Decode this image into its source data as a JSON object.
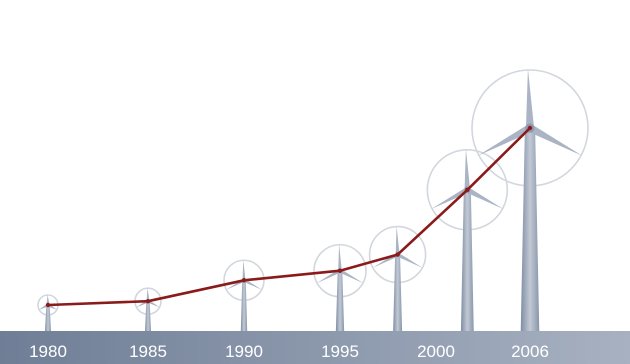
{
  "chart_data": {
    "type": "line",
    "title": "",
    "xlabel": "",
    "ylabel": "",
    "x": [
      1980,
      1985,
      1990,
      1995,
      1998,
      2002,
      2006
    ],
    "values": [
      4,
      8,
      30,
      40,
      57,
      125,
      190
    ],
    "tick_labels": [
      "1980",
      "1985",
      "1990",
      "1995",
      "2000",
      "2006"
    ],
    "ylim": [
      0,
      200
    ],
    "grid": false,
    "legend": "none",
    "colors": {
      "line": "#8b1a1a",
      "axis_band": "#8f9bb0",
      "turbine": "#aab4c4",
      "rotor_circle": "#d2d7de"
    },
    "turbines": [
      {
        "year": 1980,
        "hub": 4,
        "rotor": 10
      },
      {
        "year": 1985,
        "hub": 8,
        "rotor": 13
      },
      {
        "year": 1990,
        "hub": 30,
        "rotor": 20
      },
      {
        "year": 1995,
        "hub": 40,
        "rotor": 26
      },
      {
        "year": 1998,
        "hub": 57,
        "rotor": 28
      },
      {
        "year": 2002,
        "hub": 125,
        "rotor": 40
      },
      {
        "year": 2006,
        "hub": 190,
        "rotor": 58
      }
    ]
  }
}
